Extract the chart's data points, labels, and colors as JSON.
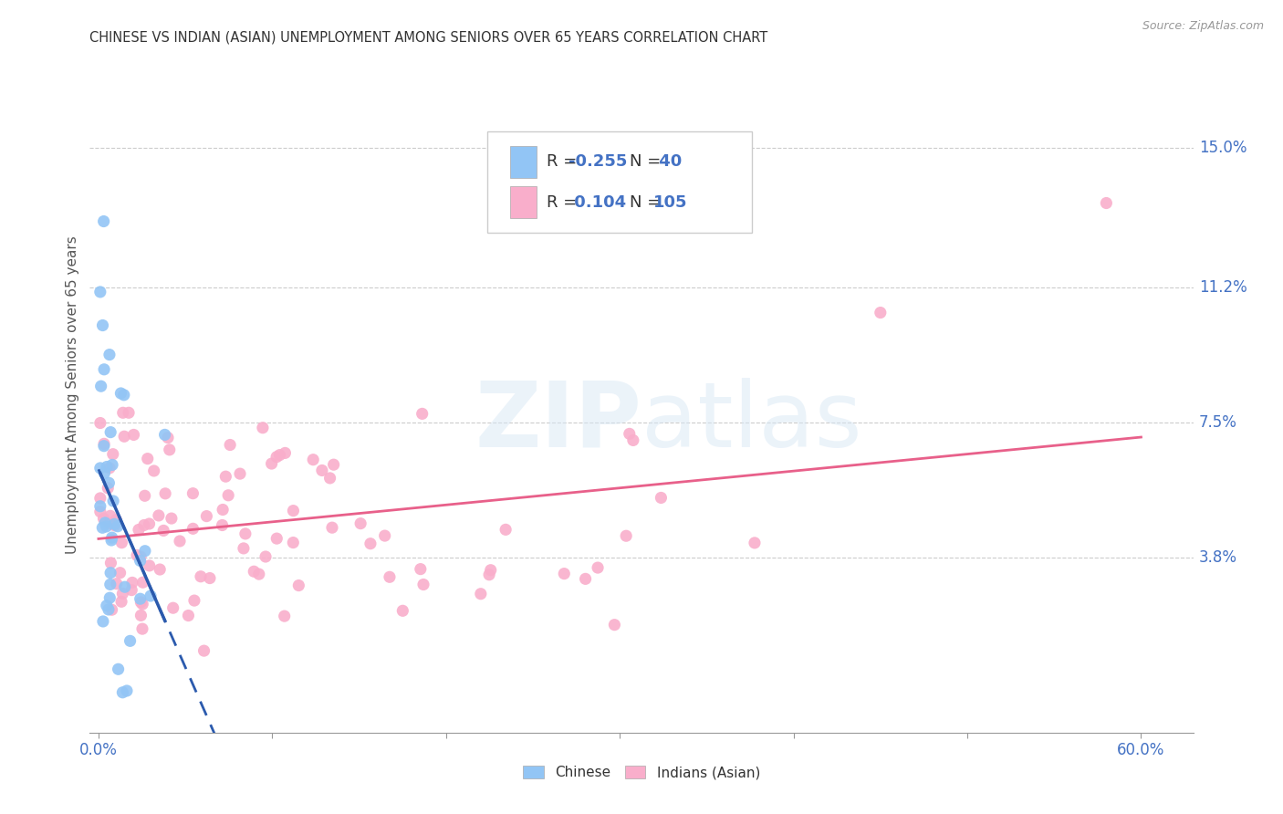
{
  "title": "CHINESE VS INDIAN (ASIAN) UNEMPLOYMENT AMONG SENIORS OVER 65 YEARS CORRELATION CHART",
  "source": "Source: ZipAtlas.com",
  "ylabel": "Unemployment Among Seniors over 65 years",
  "x_tick_labels": [
    "0.0%",
    "",
    "",
    "",
    "",
    "",
    "60.0%"
  ],
  "x_tick_values": [
    0.0,
    0.1,
    0.2,
    0.3,
    0.4,
    0.5,
    0.6
  ],
  "y_tick_labels_right": [
    "15.0%",
    "11.2%",
    "7.5%",
    "3.8%"
  ],
  "y_tick_values_right": [
    0.15,
    0.112,
    0.075,
    0.038
  ],
  "xlim": [
    -0.005,
    0.63
  ],
  "ylim": [
    -0.01,
    0.175
  ],
  "legend_chinese_R": "-0.255",
  "legend_chinese_N": "40",
  "legend_indian_R": "0.104",
  "legend_indian_N": "105",
  "chinese_color": "#92C5F5",
  "indian_color": "#F9AECB",
  "trendline_chinese_color": "#2B5AAD",
  "trendline_indian_color": "#E8608A",
  "background_color": "#FFFFFF",
  "watermark": "ZIPatlas"
}
